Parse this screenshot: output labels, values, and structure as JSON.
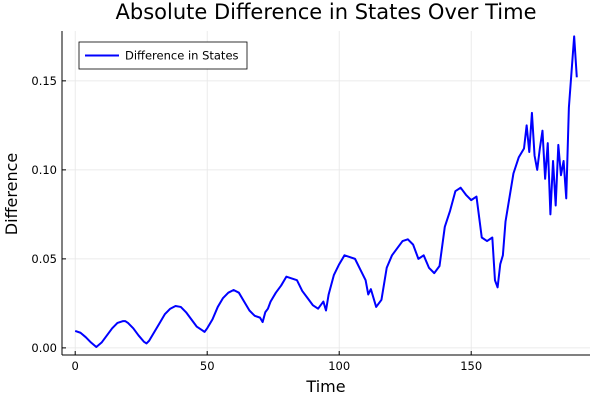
{
  "chart_data": {
    "type": "line",
    "title": "Absolute Difference in States Over Time",
    "xlabel": "Time",
    "ylabel": "Difference",
    "xlim": [
      -5,
      195
    ],
    "ylim": [
      -0.004,
      0.178
    ],
    "xticks": [
      0,
      50,
      100,
      150
    ],
    "xtick_labels": [
      "0",
      "50",
      "100",
      "150"
    ],
    "yticks": [
      0.0,
      0.05,
      0.1,
      0.15
    ],
    "ytick_labels": [
      "0.00",
      "0.05",
      "0.10",
      "0.15"
    ],
    "grid": true,
    "legend_position": "top-left",
    "colors": {
      "series": "#0000ff",
      "grid": "#e6e6e6",
      "axis": "#000000"
    },
    "series": [
      {
        "name": "Difference in States",
        "x": [
          0,
          2,
          4,
          6,
          8,
          10,
          12,
          14,
          16,
          18,
          19,
          20,
          22,
          24,
          26,
          27,
          28,
          30,
          32,
          34,
          36,
          38,
          40,
          42,
          44,
          46,
          48,
          49,
          50,
          52,
          54,
          56,
          58,
          60,
          62,
          64,
          66,
          68,
          70,
          71,
          72,
          73,
          74,
          76,
          78,
          80,
          82,
          84,
          86,
          88,
          90,
          92,
          94,
          95,
          96,
          98,
          100,
          102,
          104,
          106,
          108,
          110,
          111,
          112,
          114,
          116,
          117,
          118,
          120,
          122,
          124,
          126,
          128,
          130,
          132,
          134,
          136,
          138,
          140,
          142,
          144,
          146,
          148,
          150,
          152,
          154,
          156,
          158,
          159,
          160,
          161,
          162,
          163,
          164,
          166,
          168,
          170,
          171,
          172,
          173,
          174,
          175,
          176,
          177,
          178,
          179,
          180,
          181,
          182,
          183,
          184,
          185,
          186,
          187,
          188,
          189,
          190
        ],
        "y": [
          0.0095,
          0.0085,
          0.006,
          0.003,
          0.0005,
          0.003,
          0.007,
          0.011,
          0.014,
          0.015,
          0.015,
          0.014,
          0.011,
          0.007,
          0.0035,
          0.0025,
          0.004,
          0.009,
          0.014,
          0.019,
          0.022,
          0.0235,
          0.023,
          0.02,
          0.016,
          0.012,
          0.01,
          0.009,
          0.011,
          0.016,
          0.023,
          0.028,
          0.031,
          0.0325,
          0.031,
          0.026,
          0.021,
          0.018,
          0.017,
          0.0145,
          0.02,
          0.022,
          0.026,
          0.031,
          0.035,
          0.04,
          0.039,
          0.038,
          0.032,
          0.028,
          0.024,
          0.022,
          0.026,
          0.021,
          0.03,
          0.041,
          0.047,
          0.052,
          0.051,
          0.05,
          0.044,
          0.038,
          0.03,
          0.033,
          0.023,
          0.027,
          0.036,
          0.045,
          0.052,
          0.056,
          0.06,
          0.061,
          0.058,
          0.05,
          0.052,
          0.045,
          0.042,
          0.046,
          0.068,
          0.077,
          0.088,
          0.09,
          0.086,
          0.083,
          0.085,
          0.062,
          0.06,
          0.062,
          0.038,
          0.034,
          0.047,
          0.052,
          0.071,
          0.08,
          0.098,
          0.107,
          0.112,
          0.125,
          0.11,
          0.132,
          0.108,
          0.1,
          0.112,
          0.122,
          0.095,
          0.115,
          0.075,
          0.105,
          0.08,
          0.114,
          0.097,
          0.105,
          0.084,
          0.135,
          0.155,
          0.175,
          0.152
        ]
      }
    ]
  }
}
